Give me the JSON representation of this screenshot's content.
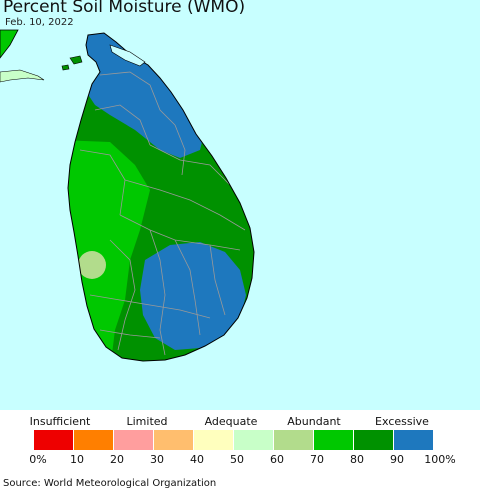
{
  "header": {
    "title": "Percent Soil Moisture (WMO)",
    "date": "Feb. 10, 2022"
  },
  "map": {
    "ocean_color": "#c8ffff",
    "boundary_color": "#999999"
  },
  "legend": {
    "categories": [
      "Insufficient",
      "Limited",
      "Adequate",
      "Abundant",
      "Excessive"
    ],
    "colors": [
      "#ee0000",
      "#ff7f00",
      "#ff9e9e",
      "#ffbe6e",
      "#ffffbe",
      "#c8ffc8",
      "#b2dc8c",
      "#00c800",
      "#009100",
      "#1e78be"
    ],
    "ticks": [
      "0%",
      "10",
      "20",
      "30",
      "40",
      "50",
      "60",
      "70",
      "80",
      "90",
      "100%"
    ]
  },
  "source": "Source: World Meteorological Organization"
}
